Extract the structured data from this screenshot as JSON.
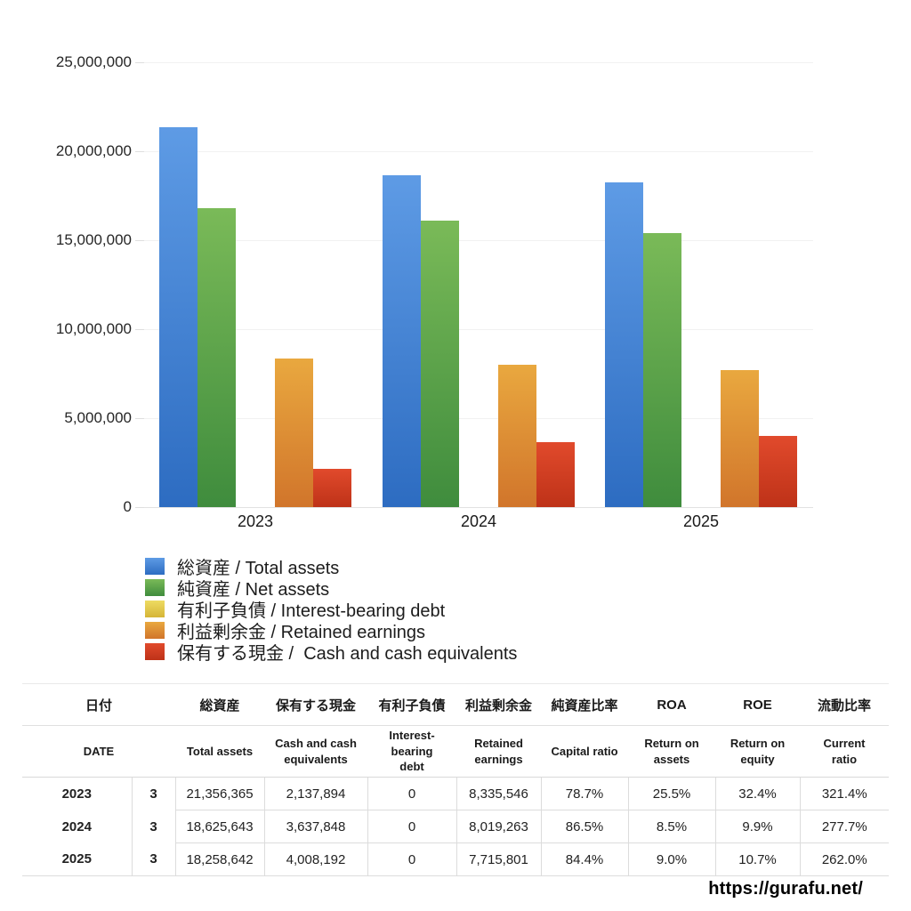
{
  "chart_data": {
    "type": "bar",
    "title": "",
    "categories": [
      "2023",
      "2024",
      "2025"
    ],
    "series": [
      {
        "name": "総資産 / Total assets",
        "values": [
          21356365,
          18625643,
          18258642
        ],
        "color_top": "#5E9BE5",
        "color_bottom": "#2D6CC1"
      },
      {
        "name": "純資産 / Net assets",
        "values": [
          16807459,
          16111181,
          15410294
        ],
        "color_top": "#7ABA58",
        "color_bottom": "#3F8C3D"
      },
      {
        "name": "有利子負債 / Interest-bearing debt",
        "values": [
          0,
          0,
          0
        ],
        "color_top": "#EEDB62",
        "color_bottom": "#D5B537"
      },
      {
        "name": "利益剰余金 / Retained earnings",
        "values": [
          8335546,
          8019263,
          7715801
        ],
        "color_top": "#E9A83F",
        "color_bottom": "#D1752B"
      },
      {
        "name": "保有する現金 /  Cash and cash equivalents",
        "values": [
          2137894,
          3637848,
          4008192
        ],
        "color_top": "#E14A2C",
        "color_bottom": "#BE3218"
      }
    ],
    "xlabel": "",
    "ylabel": "",
    "ylim": [
      0,
      25000000
    ],
    "ytick_step": 5000000,
    "ytick_labels": [
      "0",
      "5,000,000",
      "10,000,000",
      "15,000,000",
      "20,000,000",
      "25,000,000"
    ],
    "grid": true,
    "legend_position": "bottom-left"
  },
  "table": {
    "header_jp": [
      "日付",
      "総資産",
      "保有する現金",
      "有利子負債",
      "利益剰余金",
      "純資産比率",
      "ROA",
      "ROE",
      "流動比率"
    ],
    "header_en": [
      "DATE",
      "Total assets",
      "Cash and cash\nequivalents",
      "Interest-\nbearing\ndebt",
      "Retained\nearnings",
      "Capital ratio",
      "Return on\nassets",
      "Return on\nequity",
      "Current\nratio"
    ],
    "rows": [
      {
        "year": "2023",
        "month": "3",
        "total_assets": "21,356,365",
        "cash": "2,137,894",
        "debt": "0",
        "retained": "8,335,546",
        "capital_ratio": "78.7%",
        "roa": "25.5%",
        "roe": "32.4%",
        "current_ratio": "321.4%"
      },
      {
        "year": "2024",
        "month": "3",
        "total_assets": "18,625,643",
        "cash": "3,637,848",
        "debt": "0",
        "retained": "8,019,263",
        "capital_ratio": "86.5%",
        "roa": "8.5%",
        "roe": "9.9%",
        "current_ratio": "277.7%"
      },
      {
        "year": "2025",
        "month": "3",
        "total_assets": "18,258,642",
        "cash": "4,008,192",
        "debt": "0",
        "retained": "7,715,801",
        "capital_ratio": "84.4%",
        "roa": "9.0%",
        "roe": "10.7%",
        "current_ratio": "262.0%"
      }
    ]
  },
  "footer": {
    "url": "https://gurafu.net/"
  }
}
